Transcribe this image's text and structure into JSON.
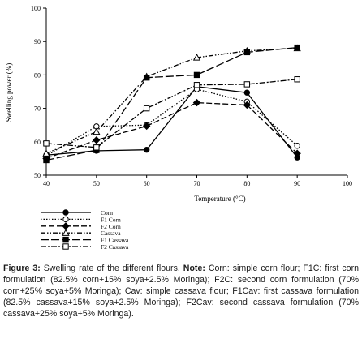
{
  "chart_data": {
    "type": "line",
    "title": "",
    "xlabel": "Temperature (°C)",
    "ylabel": "Swelling power (%)",
    "xlim": [
      40,
      100
    ],
    "ylim": [
      50,
      100
    ],
    "xticks": [
      "40",
      "50",
      "60",
      "70",
      "80",
      "90",
      "100"
    ],
    "yticks": [
      "50",
      "60",
      "70",
      "80",
      "90",
      "100"
    ],
    "grid": false,
    "legend_position": "bottom-left",
    "x": [
      40,
      50,
      60,
      70,
      80,
      90
    ],
    "series": [
      {
        "name": "Corn",
        "marker": "filled-circle",
        "dash": "solid",
        "values": [
          56,
          57.3,
          57.6,
          76.5,
          74.7,
          55.3
        ]
      },
      {
        "name": "F1 Corn",
        "marker": "open-circle",
        "dash": "dotted",
        "values": [
          55.8,
          64.6,
          65,
          75.7,
          72,
          58.8
        ]
      },
      {
        "name": "F2 Corn",
        "marker": "filled-diamond",
        "dash": "dashed",
        "values": [
          55,
          60.5,
          64.7,
          71.7,
          71,
          56.5
        ]
      },
      {
        "name": "Cassava",
        "marker": "open-triangle",
        "dash": "dash-dot-dot",
        "values": [
          56.5,
          63,
          79.5,
          85.2,
          87.2,
          88
        ]
      },
      {
        "name": "F1 Cassava",
        "marker": "filled-square",
        "dash": "long-dash",
        "values": [
          54.5,
          57.5,
          79.2,
          80,
          86.8,
          88.2
        ]
      },
      {
        "name": "F2 Cassava",
        "marker": "open-square",
        "dash": "dash-dot",
        "values": [
          59.5,
          58.3,
          70,
          77,
          77.2,
          78.7
        ]
      }
    ]
  },
  "caption": {
    "figure_label": "Figure 3:",
    "text1": " Swelling rate of the different flours. ",
    "note_label": "Note:",
    "text2": " Corn: simple corn flour; F1C: first corn formulation (82.5% corn+15% soya+2.5% Moringa); F2C: second corn formulation (70% corn+25% soya+5% Moringa); Cav: simple cassava flour; F1Cav: first cassava formulation (82.5% cassava+15% soya+2.5% Moringa); F2Cav: second cassava formulation (70% cassava+25% soya+5% Moringa)."
  },
  "colors": {
    "ink": "#000000"
  }
}
